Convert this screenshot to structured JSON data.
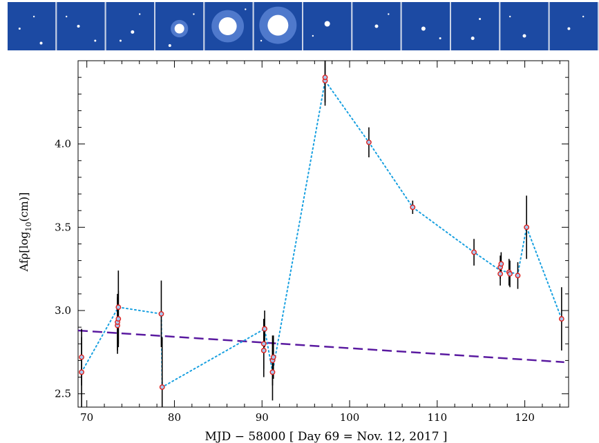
{
  "image_strip": {
    "panel_count": 12,
    "colors": {
      "background": "#1c4aa3",
      "star": "#ffffff",
      "separator": "#c8d2e6"
    }
  },
  "chart_data": {
    "type": "scatter",
    "title": "",
    "xlabel": "MJD − 58000 [ Day 69 = Nov. 12, 2017 ]",
    "ylabel_main": "Afρ[log",
    "ylabel_sub": "10",
    "ylabel_tail": "(cm)]",
    "xlim": [
      69,
      125
    ],
    "ylim": [
      2.42,
      4.5
    ],
    "xticks": [
      70,
      80,
      90,
      100,
      110,
      120
    ],
    "yticks": [
      2.5,
      3.0,
      3.5,
      4.0
    ],
    "ytick_labels": [
      "2.5",
      "3.0",
      "3.5",
      "4.0"
    ],
    "grid": false,
    "series": [
      {
        "kind": "observations",
        "points": [
          {
            "x": 69.4,
            "y": 2.72,
            "err": 0.17
          },
          {
            "x": 69.4,
            "y": 2.63,
            "err": 0.21
          },
          {
            "x": 73.5,
            "y": 2.91,
            "err": 0.17
          },
          {
            "x": 73.5,
            "y": 2.93,
            "err": 0.17
          },
          {
            "x": 73.6,
            "y": 2.95,
            "err": 0.17
          },
          {
            "x": 73.6,
            "y": 3.02,
            "err": 0.22
          },
          {
            "x": 78.5,
            "y": 2.98,
            "err": 0.2
          },
          {
            "x": 78.6,
            "y": 2.54,
            "err": 0.3
          },
          {
            "x": 90.2,
            "y": 2.76,
            "err": 0.16
          },
          {
            "x": 90.2,
            "y": 2.8,
            "err": 0.15
          },
          {
            "x": 90.3,
            "y": 2.89,
            "err": 0.11
          },
          {
            "x": 91.2,
            "y": 2.63,
            "err": 0.17
          },
          {
            "x": 91.2,
            "y": 2.7,
            "err": 0.15
          },
          {
            "x": 91.3,
            "y": 2.72,
            "err": 0.13
          },
          {
            "x": 97.2,
            "y": 4.38,
            "err": 0.15
          },
          {
            "x": 97.2,
            "y": 4.4,
            "err": 0.15
          },
          {
            "x": 102.2,
            "y": 4.01,
            "err": 0.09
          },
          {
            "x": 107.2,
            "y": 3.62,
            "err": 0.04
          },
          {
            "x": 114.2,
            "y": 3.35,
            "err": 0.08
          },
          {
            "x": 117.2,
            "y": 3.22,
            "err": 0.07
          },
          {
            "x": 117.2,
            "y": 3.26,
            "err": 0.07
          },
          {
            "x": 117.3,
            "y": 3.28,
            "err": 0.07
          },
          {
            "x": 118.2,
            "y": 3.23,
            "err": 0.08
          },
          {
            "x": 118.3,
            "y": 3.22,
            "err": 0.08
          },
          {
            "x": 119.2,
            "y": 3.21,
            "err": 0.08
          },
          {
            "x": 120.2,
            "y": 3.5,
            "err": 0.19
          },
          {
            "x": 124.2,
            "y": 2.95,
            "err": 0.19
          }
        ],
        "colors": {
          "marker_edge": "#e0201b",
          "marker_fill": "#a8c8f0",
          "errorbar": "#000000"
        }
      },
      {
        "kind": "connecting-line",
        "style": "dotted",
        "color": "#18a0e0",
        "path": [
          {
            "x": 69.4,
            "y": 2.63
          },
          {
            "x": 73.6,
            "y": 3.02
          },
          {
            "x": 78.5,
            "y": 2.98
          },
          {
            "x": 78.6,
            "y": 2.54
          },
          {
            "x": 90.3,
            "y": 2.89
          },
          {
            "x": 91.2,
            "y": 2.63
          },
          {
            "x": 97.2,
            "y": 4.38
          },
          {
            "x": 102.2,
            "y": 4.01
          },
          {
            "x": 107.2,
            "y": 3.62
          },
          {
            "x": 114.2,
            "y": 3.35
          },
          {
            "x": 117.2,
            "y": 3.24
          },
          {
            "x": 119.2,
            "y": 3.22
          },
          {
            "x": 120.2,
            "y": 3.5
          },
          {
            "x": 124.2,
            "y": 2.95
          }
        ]
      },
      {
        "kind": "baseline-trend",
        "style": "dashed",
        "color": "#5a1aa0",
        "path": [
          {
            "x": 69.0,
            "y": 2.88
          },
          {
            "x": 124.5,
            "y": 2.69
          }
        ]
      }
    ]
  }
}
